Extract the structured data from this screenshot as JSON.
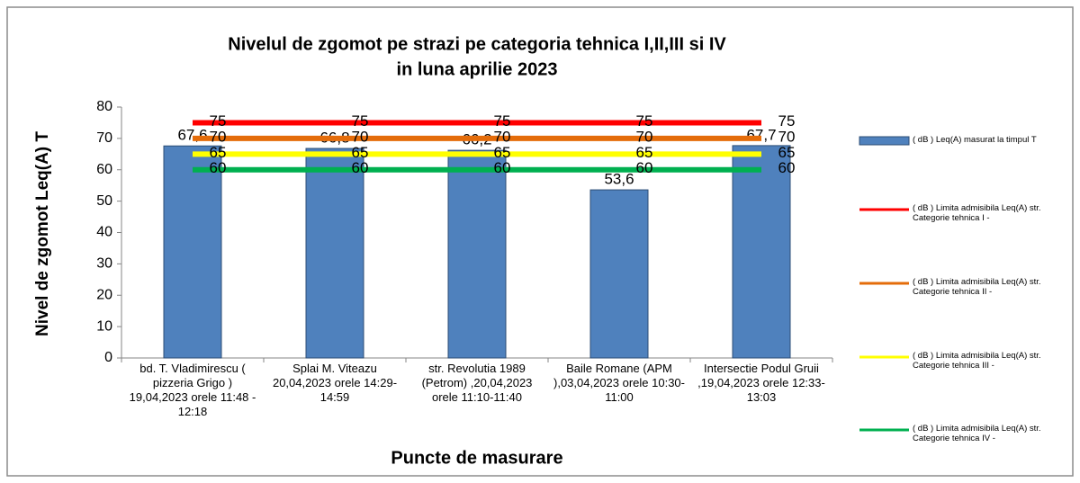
{
  "chart_data": {
    "type": "bar",
    "title": [
      "Nivelul de  zgomot pe strazi pe categoria tehnica I,II,III  si IV",
      "in luna aprilie 2023"
    ],
    "x_label": "Puncte de masurare",
    "y_label": "Nivel de zgomot  Leq(A) T",
    "categories": [
      "bd. T. Vladimirescu ( pizzeria Grigo ) 19,04,2023 orele 11:48 - 12:18",
      "Splai M. Viteazu 20,04,2023 orele 14:29-14:59",
      "str. Revolutia 1989 (Petrom) ,20,04,2023 orele 11:10-11:40",
      "Baile Romane (APM ),03,04,2023 orele 10:30-11:00",
      "Intersectie Podul Gruii  ,19,04,2023 orele 12:33-13:03"
    ],
    "series": [
      {
        "name": "( dB ) Leq(A)  masurat la timpul T",
        "type": "bar",
        "color": "#4f81bd",
        "values": [
          67.6,
          66.8,
          66.2,
          53.6,
          67.7
        ],
        "value_labels": [
          "67,6",
          "66,8",
          "66,2",
          "53,6",
          "67,7"
        ]
      },
      {
        "name": "( dB ) Limita  admisibila Leq(A) str. Categorie tehnica I -",
        "type": "line",
        "color": "#ff0000",
        "values": [
          75,
          75,
          75,
          75,
          75
        ]
      },
      {
        "name": "( dB ) Limita  admisibila Leq(A) str. Categorie tehnica II -",
        "type": "line",
        "color": "#e46c0a",
        "values": [
          70,
          70,
          70,
          70,
          70
        ]
      },
      {
        "name": "( dB ) Limita  admisibila Leq(A) str. Categorie tehnica III -",
        "type": "line",
        "color": "#ffff00",
        "values": [
          65,
          65,
          65,
          65,
          65
        ]
      },
      {
        "name": "( dB ) Limita  admisibila Leq(A) str. Categorie tehnica IV -",
        "type": "line",
        "color": "#00b050",
        "values": [
          60,
          60,
          60,
          60,
          60
        ]
      }
    ],
    "ylim": [
      0,
      80
    ],
    "yticks": [
      0,
      10,
      20,
      30,
      40,
      50,
      60,
      70,
      80
    ],
    "grid": false,
    "legend": "right"
  }
}
